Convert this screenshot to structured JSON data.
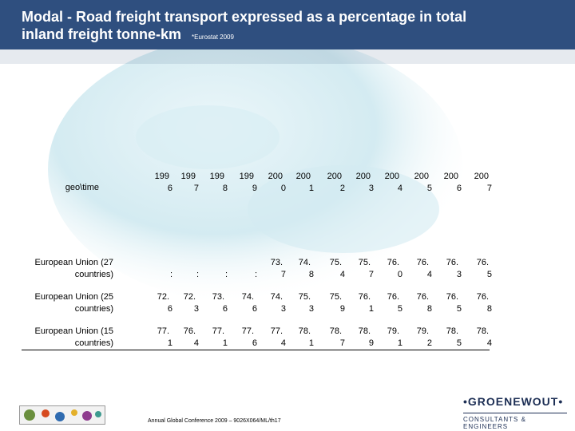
{
  "slide": {
    "title_line1": "Modal - Road freight transport expressed as a percentage in total",
    "title_line2": "inland freight tonne-km",
    "source_note": "*Eurostat 2009",
    "header_color": "#2f4f7f"
  },
  "table": {
    "corner_label": "geo\\time",
    "years": [
      {
        "top": "199",
        "bottom": "6"
      },
      {
        "top": "199",
        "bottom": "7"
      },
      {
        "top": "199",
        "bottom": "8"
      },
      {
        "top": "199",
        "bottom": "9"
      },
      {
        "top": "200",
        "bottom": "0"
      },
      {
        "top": "200",
        "bottom": "1"
      },
      {
        "top": "200",
        "bottom": "2"
      },
      {
        "top": "200",
        "bottom": "3"
      },
      {
        "top": "200",
        "bottom": "4"
      },
      {
        "top": "200",
        "bottom": "5"
      },
      {
        "top": "200",
        "bottom": "6"
      },
      {
        "top": "200",
        "bottom": "7"
      }
    ],
    "rows": [
      {
        "label_line1": "European Union (27",
        "label_line2": "countries)",
        "cells": [
          {
            "top": "",
            "bottom": ":"
          },
          {
            "top": "",
            "bottom": ":"
          },
          {
            "top": "",
            "bottom": ":"
          },
          {
            "top": "",
            "bottom": ":"
          },
          {
            "top": "73.",
            "bottom": "7"
          },
          {
            "top": "74.",
            "bottom": "8"
          },
          {
            "top": "75.",
            "bottom": "4"
          },
          {
            "top": "75.",
            "bottom": "7"
          },
          {
            "top": "76.",
            "bottom": "0"
          },
          {
            "top": "76.",
            "bottom": "4"
          },
          {
            "top": "76.",
            "bottom": "3"
          },
          {
            "top": "76.",
            "bottom": "5"
          }
        ]
      },
      {
        "label_line1": "European Union (25",
        "label_line2": "countries)",
        "cells": [
          {
            "top": "72.",
            "bottom": "6"
          },
          {
            "top": "72.",
            "bottom": "3"
          },
          {
            "top": "73.",
            "bottom": "6"
          },
          {
            "top": "74.",
            "bottom": "6"
          },
          {
            "top": "74.",
            "bottom": "3"
          },
          {
            "top": "75.",
            "bottom": "3"
          },
          {
            "top": "75.",
            "bottom": "9"
          },
          {
            "top": "76.",
            "bottom": "1"
          },
          {
            "top": "76.",
            "bottom": "5"
          },
          {
            "top": "76.",
            "bottom": "8"
          },
          {
            "top": "76.",
            "bottom": "5"
          },
          {
            "top": "76.",
            "bottom": "8"
          }
        ]
      },
      {
        "label_line1": "European Union (15",
        "label_line2": "countries)",
        "cells": [
          {
            "top": "77.",
            "bottom": "1"
          },
          {
            "top": "76.",
            "bottom": "4"
          },
          {
            "top": "77.",
            "bottom": "1"
          },
          {
            "top": "77.",
            "bottom": "6"
          },
          {
            "top": "77.",
            "bottom": "4"
          },
          {
            "top": "78.",
            "bottom": "1"
          },
          {
            "top": "78.",
            "bottom": "7"
          },
          {
            "top": "78.",
            "bottom": "9"
          },
          {
            "top": "79.",
            "bottom": "1"
          },
          {
            "top": "79.",
            "bottom": "2"
          },
          {
            "top": "78.",
            "bottom": "5"
          },
          {
            "top": "78.",
            "bottom": "4"
          }
        ]
      }
    ]
  },
  "footer": {
    "conference": "Annual Global Conference 2009 – 9026X064/ML/th",
    "page_number": "17",
    "brand_name": "•GROENEWOUT•",
    "brand_tagline": "CONSULTANTS & ENGINEERS"
  }
}
